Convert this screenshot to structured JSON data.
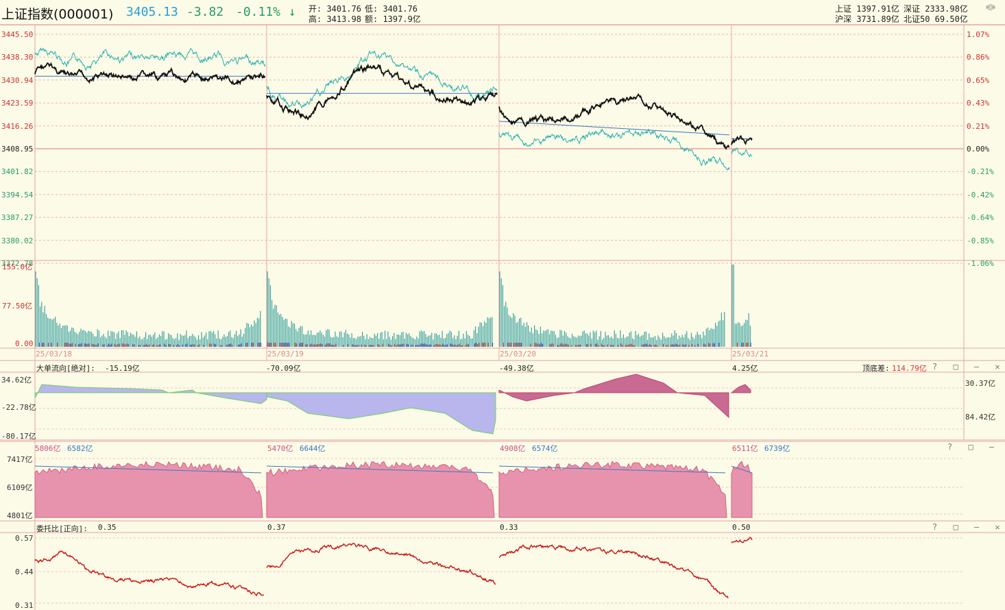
{
  "header": {
    "name": "上证指数(000001)",
    "last": "3405.13",
    "change": "-3.82",
    "pct": "-0.11%",
    "arrow": "↓",
    "open": "开: 3401.76",
    "low": "低: 3401.76",
    "high": "高: 3413.98",
    "amount": "额: 1397.9亿",
    "sh": "上证 1397.91亿",
    "sz": "深证 2333.98亿",
    "hs": "沪深 3731.89亿",
    "bz50": "北证50 69.50亿"
  },
  "price_axis": {
    "left": [
      "3445.50",
      "3438.30",
      "3430.94",
      "3423.59",
      "3416.26",
      "3408.95",
      "3401.82",
      "3394.54",
      "3387.27",
      "3380.02",
      "3372.78"
    ],
    "right": [
      "1.07%",
      "0.86%",
      "0.65%",
      "0.43%",
      "0.21%",
      "0.00%",
      "-0.21%",
      "-0.42%",
      "-0.64%",
      "-0.85%",
      "-1.06%"
    ]
  },
  "volume_axis": [
    "155.0亿",
    "77.50亿",
    "0.00"
  ],
  "dates": [
    "25/03/18",
    "25/03/19",
    "25/03/20",
    "25/03/21"
  ],
  "panel1": {
    "title": "大单流向[绝对]:",
    "values": [
      "-15.19亿",
      "-70.09亿",
      "-49.38亿",
      "4.25亿"
    ],
    "diff_label": "顶底差:",
    "diff_value": "114.79亿",
    "axis": [
      "34.62亿",
      "-22.78亿",
      "-80.17亿"
    ],
    "right": [
      "30.37亿",
      "84.42亿"
    ]
  },
  "panel2": {
    "pairs": [
      [
        "5806亿",
        "6582亿"
      ],
      [
        "5470亿",
        "6644亿"
      ],
      [
        "4908亿",
        "6574亿"
      ],
      [
        "6511亿",
        "6739亿"
      ]
    ],
    "axis": [
      "7417亿",
      "6109亿",
      "4801亿"
    ]
  },
  "panel3": {
    "title": "委托比[正向]:",
    "values": [
      "0.35",
      "0.37",
      "0.33",
      "0.50"
    ],
    "axis": [
      "0.57",
      "0.44",
      "0.31"
    ]
  },
  "controls": {
    "panel1": "? □ — ✕ ⧉",
    "panel2": "? □ — ✕",
    "panel3": "? □ — ✕ ⧉"
  },
  "colors": {
    "price_line": "#111111",
    "index_line": "#24b0b0",
    "avg_line": "#3a76c4",
    "down": "#2a9a9a",
    "up": "#e03030",
    "flow_pos": "#c86a92",
    "flow_neg": "#b8b6ec",
    "area": "#e893ad",
    "ratio": "#cc1111"
  }
}
